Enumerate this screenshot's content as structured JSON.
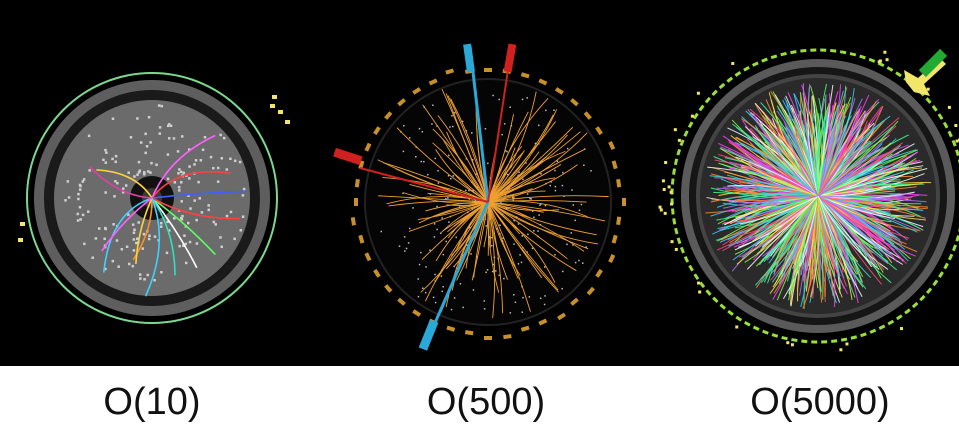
{
  "panels": [
    {
      "caption": "O(10)",
      "image": "low-multiplicity-collision-event-display"
    },
    {
      "caption": "O(500)",
      "image": "medium-multiplicity-collision-event-display"
    },
    {
      "caption": "O(5000)",
      "image": "high-multiplicity-collision-event-display"
    }
  ],
  "colors": {
    "background": "#000000",
    "caption_band": "#ffffff",
    "caption_text": "#111111",
    "detector_ring": "#5e5e5e",
    "outer_ring_green": "#7bd88f",
    "track_orange": "#f0a030",
    "track_blue": "#2aa8d8",
    "track_red": "#d02020",
    "hit_yellow": "#f2e66a"
  }
}
